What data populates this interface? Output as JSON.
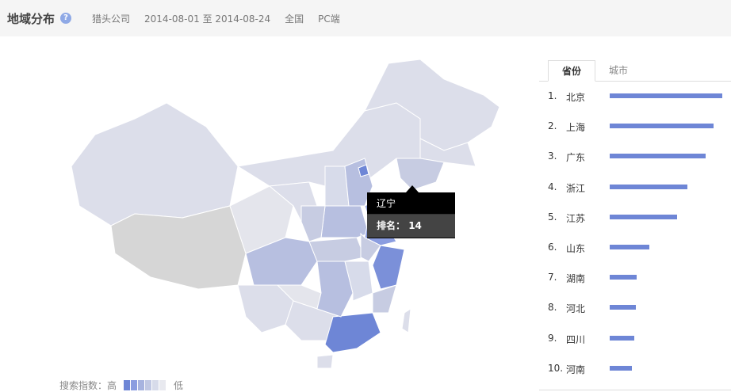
{
  "header": {
    "title": "地域分布",
    "help_icon": "question-icon",
    "company": "猎头公司",
    "date_range": "2014-08-01 至 2014-08-24",
    "region": "全国",
    "platform": "PC端"
  },
  "map": {
    "tooltip": {
      "province": "辽宁",
      "rank_label": "排名：",
      "rank_value": "14"
    },
    "colors": {
      "high": "#6e86d6",
      "mid": "#b7bfe0",
      "low": "#dcdeea",
      "none": "#d6d6d6"
    }
  },
  "legend": {
    "label": "搜索指数：高",
    "low": "低",
    "colors": [
      "#6e86d6",
      "#8b9de0",
      "#a7b3df",
      "#c1c8e3",
      "#d7dbea",
      "#e8e9ef"
    ]
  },
  "tabs": [
    {
      "label": "省份",
      "active": true
    },
    {
      "label": "城市",
      "active": false
    }
  ],
  "ranking": [
    {
      "rank": "1.",
      "name": "北京",
      "value": 100
    },
    {
      "rank": "2.",
      "name": "上海",
      "value": 92
    },
    {
      "rank": "3.",
      "name": "广东",
      "value": 85
    },
    {
      "rank": "4.",
      "name": "浙江",
      "value": 69
    },
    {
      "rank": "5.",
      "name": "江苏",
      "value": 60
    },
    {
      "rank": "6.",
      "name": "山东",
      "value": 35
    },
    {
      "rank": "7.",
      "name": "湖南",
      "value": 24
    },
    {
      "rank": "8.",
      "name": "河北",
      "value": 23
    },
    {
      "rank": "9.",
      "name": "四川",
      "value": 22
    },
    {
      "rank": "10.",
      "name": "河南",
      "value": 20
    }
  ]
}
